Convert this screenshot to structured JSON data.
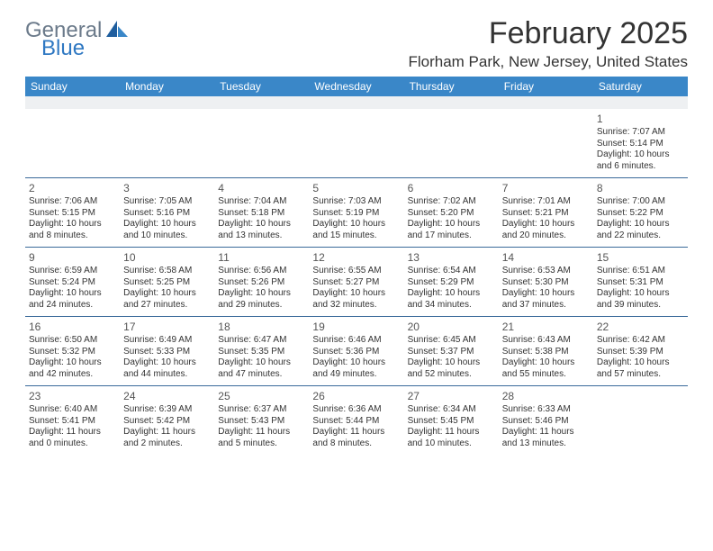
{
  "logo": {
    "text1": "General",
    "text2": "Blue"
  },
  "title": "February 2025",
  "location": "Florham Park, New Jersey, United States",
  "colors": {
    "header_bg": "#3a87c8",
    "header_fg": "#ffffff",
    "rule": "#3a6a9a",
    "spacer_bg": "#eef0f2",
    "text": "#333333",
    "daynum": "#555555",
    "logo_gray": "#6b7a8a",
    "logo_blue": "#2f78c2"
  },
  "fonts": {
    "title_pt": 34,
    "location_pt": 17,
    "header_pt": 12,
    "cell_pt": 10,
    "daynum_pt": 12
  },
  "table": {
    "columns": [
      "Sunday",
      "Monday",
      "Tuesday",
      "Wednesday",
      "Thursday",
      "Friday",
      "Saturday"
    ],
    "weeks": [
      [
        null,
        null,
        null,
        null,
        null,
        null,
        {
          "day": "1",
          "sunrise": "Sunrise: 7:07 AM",
          "sunset": "Sunset: 5:14 PM",
          "dl1": "Daylight: 10 hours",
          "dl2": "and 6 minutes."
        }
      ],
      [
        {
          "day": "2",
          "sunrise": "Sunrise: 7:06 AM",
          "sunset": "Sunset: 5:15 PM",
          "dl1": "Daylight: 10 hours",
          "dl2": "and 8 minutes."
        },
        {
          "day": "3",
          "sunrise": "Sunrise: 7:05 AM",
          "sunset": "Sunset: 5:16 PM",
          "dl1": "Daylight: 10 hours",
          "dl2": "and 10 minutes."
        },
        {
          "day": "4",
          "sunrise": "Sunrise: 7:04 AM",
          "sunset": "Sunset: 5:18 PM",
          "dl1": "Daylight: 10 hours",
          "dl2": "and 13 minutes."
        },
        {
          "day": "5",
          "sunrise": "Sunrise: 7:03 AM",
          "sunset": "Sunset: 5:19 PM",
          "dl1": "Daylight: 10 hours",
          "dl2": "and 15 minutes."
        },
        {
          "day": "6",
          "sunrise": "Sunrise: 7:02 AM",
          "sunset": "Sunset: 5:20 PM",
          "dl1": "Daylight: 10 hours",
          "dl2": "and 17 minutes."
        },
        {
          "day": "7",
          "sunrise": "Sunrise: 7:01 AM",
          "sunset": "Sunset: 5:21 PM",
          "dl1": "Daylight: 10 hours",
          "dl2": "and 20 minutes."
        },
        {
          "day": "8",
          "sunrise": "Sunrise: 7:00 AM",
          "sunset": "Sunset: 5:22 PM",
          "dl1": "Daylight: 10 hours",
          "dl2": "and 22 minutes."
        }
      ],
      [
        {
          "day": "9",
          "sunrise": "Sunrise: 6:59 AM",
          "sunset": "Sunset: 5:24 PM",
          "dl1": "Daylight: 10 hours",
          "dl2": "and 24 minutes."
        },
        {
          "day": "10",
          "sunrise": "Sunrise: 6:58 AM",
          "sunset": "Sunset: 5:25 PM",
          "dl1": "Daylight: 10 hours",
          "dl2": "and 27 minutes."
        },
        {
          "day": "11",
          "sunrise": "Sunrise: 6:56 AM",
          "sunset": "Sunset: 5:26 PM",
          "dl1": "Daylight: 10 hours",
          "dl2": "and 29 minutes."
        },
        {
          "day": "12",
          "sunrise": "Sunrise: 6:55 AM",
          "sunset": "Sunset: 5:27 PM",
          "dl1": "Daylight: 10 hours",
          "dl2": "and 32 minutes."
        },
        {
          "day": "13",
          "sunrise": "Sunrise: 6:54 AM",
          "sunset": "Sunset: 5:29 PM",
          "dl1": "Daylight: 10 hours",
          "dl2": "and 34 minutes."
        },
        {
          "day": "14",
          "sunrise": "Sunrise: 6:53 AM",
          "sunset": "Sunset: 5:30 PM",
          "dl1": "Daylight: 10 hours",
          "dl2": "and 37 minutes."
        },
        {
          "day": "15",
          "sunrise": "Sunrise: 6:51 AM",
          "sunset": "Sunset: 5:31 PM",
          "dl1": "Daylight: 10 hours",
          "dl2": "and 39 minutes."
        }
      ],
      [
        {
          "day": "16",
          "sunrise": "Sunrise: 6:50 AM",
          "sunset": "Sunset: 5:32 PM",
          "dl1": "Daylight: 10 hours",
          "dl2": "and 42 minutes."
        },
        {
          "day": "17",
          "sunrise": "Sunrise: 6:49 AM",
          "sunset": "Sunset: 5:33 PM",
          "dl1": "Daylight: 10 hours",
          "dl2": "and 44 minutes."
        },
        {
          "day": "18",
          "sunrise": "Sunrise: 6:47 AM",
          "sunset": "Sunset: 5:35 PM",
          "dl1": "Daylight: 10 hours",
          "dl2": "and 47 minutes."
        },
        {
          "day": "19",
          "sunrise": "Sunrise: 6:46 AM",
          "sunset": "Sunset: 5:36 PM",
          "dl1": "Daylight: 10 hours",
          "dl2": "and 49 minutes."
        },
        {
          "day": "20",
          "sunrise": "Sunrise: 6:45 AM",
          "sunset": "Sunset: 5:37 PM",
          "dl1": "Daylight: 10 hours",
          "dl2": "and 52 minutes."
        },
        {
          "day": "21",
          "sunrise": "Sunrise: 6:43 AM",
          "sunset": "Sunset: 5:38 PM",
          "dl1": "Daylight: 10 hours",
          "dl2": "and 55 minutes."
        },
        {
          "day": "22",
          "sunrise": "Sunrise: 6:42 AM",
          "sunset": "Sunset: 5:39 PM",
          "dl1": "Daylight: 10 hours",
          "dl2": "and 57 minutes."
        }
      ],
      [
        {
          "day": "23",
          "sunrise": "Sunrise: 6:40 AM",
          "sunset": "Sunset: 5:41 PM",
          "dl1": "Daylight: 11 hours",
          "dl2": "and 0 minutes."
        },
        {
          "day": "24",
          "sunrise": "Sunrise: 6:39 AM",
          "sunset": "Sunset: 5:42 PM",
          "dl1": "Daylight: 11 hours",
          "dl2": "and 2 minutes."
        },
        {
          "day": "25",
          "sunrise": "Sunrise: 6:37 AM",
          "sunset": "Sunset: 5:43 PM",
          "dl1": "Daylight: 11 hours",
          "dl2": "and 5 minutes."
        },
        {
          "day": "26",
          "sunrise": "Sunrise: 6:36 AM",
          "sunset": "Sunset: 5:44 PM",
          "dl1": "Daylight: 11 hours",
          "dl2": "and 8 minutes."
        },
        {
          "day": "27",
          "sunrise": "Sunrise: 6:34 AM",
          "sunset": "Sunset: 5:45 PM",
          "dl1": "Daylight: 11 hours",
          "dl2": "and 10 minutes."
        },
        {
          "day": "28",
          "sunrise": "Sunrise: 6:33 AM",
          "sunset": "Sunset: 5:46 PM",
          "dl1": "Daylight: 11 hours",
          "dl2": "and 13 minutes."
        },
        null
      ]
    ]
  }
}
